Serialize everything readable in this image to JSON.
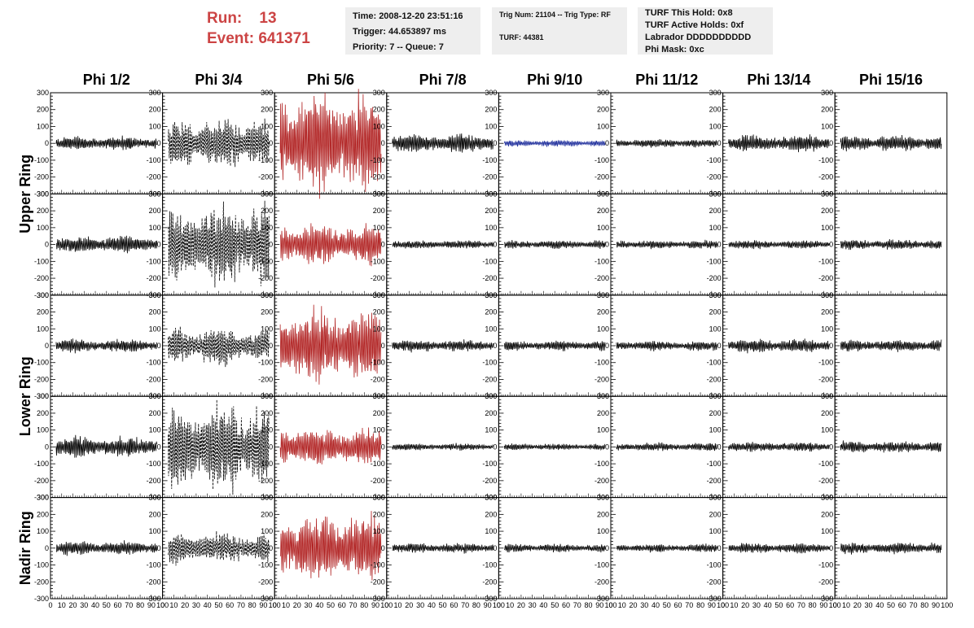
{
  "run": {
    "run_label": "Run:",
    "run_value": "13",
    "event_label": "Event:",
    "event_value": "641371"
  },
  "info_time": [
    "Time: 2008-12-20 23:51:16",
    "Trigger: 44.653897 ms",
    "Priority: 7 -- Queue: 7"
  ],
  "info_trig": [
    "Trig Num: 21104 -- Trig Type: RF",
    "TURF: 44381"
  ],
  "info_turf": [
    "TURF This Hold: 0x8",
    "TURF Active Holds: 0xf",
    "Labrador DDDDDDDDDD",
    "Phi Mask: 0xc"
  ],
  "colors": {
    "accent_red": "#cc4444",
    "trace_black": "#000000",
    "trace_red": "#b02020",
    "trace_blue": "#1a2a9a",
    "info_bg": "#eeeeee"
  },
  "chart_data": {
    "type": "line",
    "columns": [
      "Phi 1/2",
      "Phi 3/4",
      "Phi 5/6",
      "Phi 7/8",
      "Phi 9/10",
      "Phi 11/12",
      "Phi 13/14",
      "Phi 15/16"
    ],
    "ring_labels": [
      {
        "label": "Upper Ring",
        "rows": [
          0,
          1
        ]
      },
      {
        "label": "Lower Ring",
        "rows": [
          2,
          3
        ]
      },
      {
        "label": "Nadir Ring",
        "rows": [
          4
        ]
      }
    ],
    "xlim": [
      0,
      100
    ],
    "ylim": [
      -300,
      300
    ],
    "yticks": [
      -300,
      -200,
      -100,
      0,
      100,
      200,
      300
    ],
    "xticks": [
      0,
      10,
      20,
      30,
      40,
      50,
      60,
      70,
      80,
      90,
      100
    ],
    "x_tick_labels": [
      "0",
      "10",
      "20",
      "30",
      "40",
      "50",
      "60",
      "70",
      "80",
      "90",
      "100"
    ],
    "waveforms": [
      [
        {
          "amp": 40,
          "style": "solid",
          "color": "black"
        },
        {
          "amp": 150,
          "style": "dashed",
          "color": "black"
        },
        {
          "amp": 300,
          "style": "solid",
          "color": "red"
        },
        {
          "amp": 55,
          "style": "solid",
          "color": "black"
        },
        {
          "amp": 20,
          "style": "solid",
          "color": "blue"
        },
        {
          "amp": 25,
          "style": "solid",
          "color": "black"
        },
        {
          "amp": 50,
          "style": "solid",
          "color": "black"
        },
        {
          "amp": 45,
          "style": "solid",
          "color": "black"
        }
      ],
      [
        {
          "amp": 50,
          "style": "solid",
          "color": "black"
        },
        {
          "amp": 240,
          "style": "dashed",
          "color": "black"
        },
        {
          "amp": 120,
          "style": "solid",
          "color": "red"
        },
        {
          "amp": 25,
          "style": "solid",
          "color": "black"
        },
        {
          "amp": 25,
          "style": "solid",
          "color": "black"
        },
        {
          "amp": 25,
          "style": "solid",
          "color": "black"
        },
        {
          "amp": 25,
          "style": "solid",
          "color": "black"
        },
        {
          "amp": 30,
          "style": "solid",
          "color": "black"
        }
      ],
      [
        {
          "amp": 40,
          "style": "solid",
          "color": "black"
        },
        {
          "amp": 110,
          "style": "dashed",
          "color": "black"
        },
        {
          "amp": 230,
          "style": "solid",
          "color": "red"
        },
        {
          "amp": 35,
          "style": "solid",
          "color": "black"
        },
        {
          "amp": 30,
          "style": "solid",
          "color": "black"
        },
        {
          "amp": 30,
          "style": "solid",
          "color": "black"
        },
        {
          "amp": 40,
          "style": "solid",
          "color": "black"
        },
        {
          "amp": 35,
          "style": "solid",
          "color": "black"
        }
      ],
      [
        {
          "amp": 60,
          "style": "solid",
          "color": "black"
        },
        {
          "amp": 260,
          "style": "dashed",
          "color": "black"
        },
        {
          "amp": 110,
          "style": "solid",
          "color": "red"
        },
        {
          "amp": 20,
          "style": "solid",
          "color": "black"
        },
        {
          "amp": 20,
          "style": "solid",
          "color": "black"
        },
        {
          "amp": 25,
          "style": "solid",
          "color": "black"
        },
        {
          "amp": 30,
          "style": "solid",
          "color": "black"
        },
        {
          "amp": 35,
          "style": "solid",
          "color": "black"
        }
      ],
      [
        {
          "amp": 40,
          "style": "solid",
          "color": "black"
        },
        {
          "amp": 90,
          "style": "dashed",
          "color": "black"
        },
        {
          "amp": 200,
          "style": "solid",
          "color": "red"
        },
        {
          "amp": 30,
          "style": "solid",
          "color": "black"
        },
        {
          "amp": 25,
          "style": "solid",
          "color": "black"
        },
        {
          "amp": 25,
          "style": "solid",
          "color": "black"
        },
        {
          "amp": 30,
          "style": "solid",
          "color": "black"
        },
        {
          "amp": 35,
          "style": "solid",
          "color": "black"
        }
      ]
    ]
  }
}
